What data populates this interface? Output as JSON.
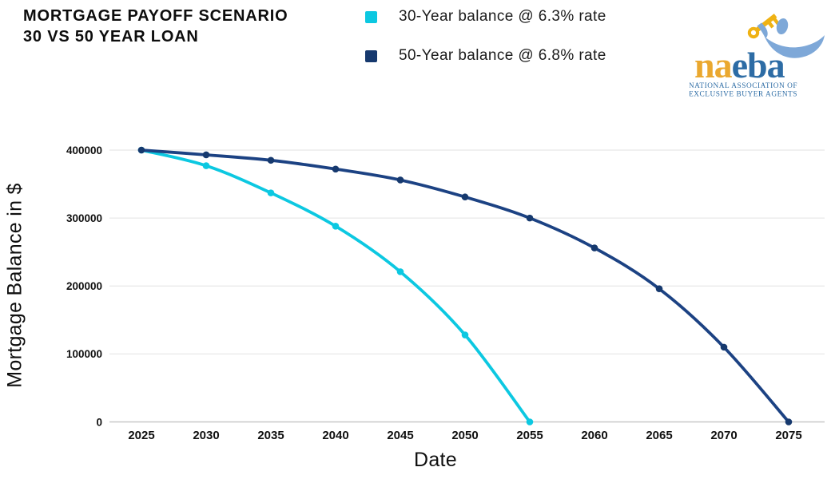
{
  "title": {
    "line1": "MORTGAGE PAYOFF SCENARIO",
    "line2": "30 VS 50 YEAR LOAN"
  },
  "legend": {
    "items": [
      {
        "label": "30-Year balance @ 6.3% rate",
        "color": "#0cc8e1"
      },
      {
        "label": "50-Year balance @ 6.8% rate",
        "color": "#16396e"
      }
    ]
  },
  "logo": {
    "wordmark_gold": "na",
    "wordmark_blue": "eba",
    "tagline_line1": "NATIONAL ASSOCIATION OF",
    "tagline_line2": "EXCLUSIVE BUYER AGENTS",
    "gold": "#eaa82f",
    "blue": "#2d6ca5",
    "light_blue": "#7ea8d8",
    "key_gold": "#efb213"
  },
  "chart_data": {
    "type": "line",
    "title": "Mortgage Payoff Scenario 30 vs 50 Year Loan",
    "xlabel": "Date",
    "ylabel": "Mortgage Balance in $",
    "xticks": [
      2025,
      2030,
      2035,
      2040,
      2045,
      2050,
      2055,
      2060,
      2065,
      2070,
      2075
    ],
    "yticks": [
      0,
      100000,
      200000,
      300000,
      400000
    ],
    "xlim": [
      2025,
      2075
    ],
    "ylim": [
      0,
      400000
    ],
    "grid": "horizontal-only",
    "legend_position": "top-center",
    "series": [
      {
        "name": "30-Year balance @ 6.3% rate",
        "color": "#0cc8e1",
        "marker_color": "#0cc8e1",
        "x": [
          2025,
          2030,
          2035,
          2040,
          2045,
          2050,
          2055
        ],
        "values": [
          400000,
          377000,
          337000,
          288000,
          221000,
          128000,
          0
        ]
      },
      {
        "name": "50-Year balance @ 6.8% rate",
        "color": "#1c4283",
        "marker_color": "#16396e",
        "x": [
          2025,
          2030,
          2035,
          2040,
          2045,
          2050,
          2055,
          2060,
          2065,
          2070,
          2075
        ],
        "values": [
          400000,
          393000,
          385000,
          372000,
          356000,
          331000,
          300000,
          256000,
          196000,
          110000,
          0
        ]
      }
    ],
    "colors": {
      "gridline": "#e8e8e8",
      "axis_line": "#c7c7c7",
      "tick_text": "#111111"
    }
  }
}
